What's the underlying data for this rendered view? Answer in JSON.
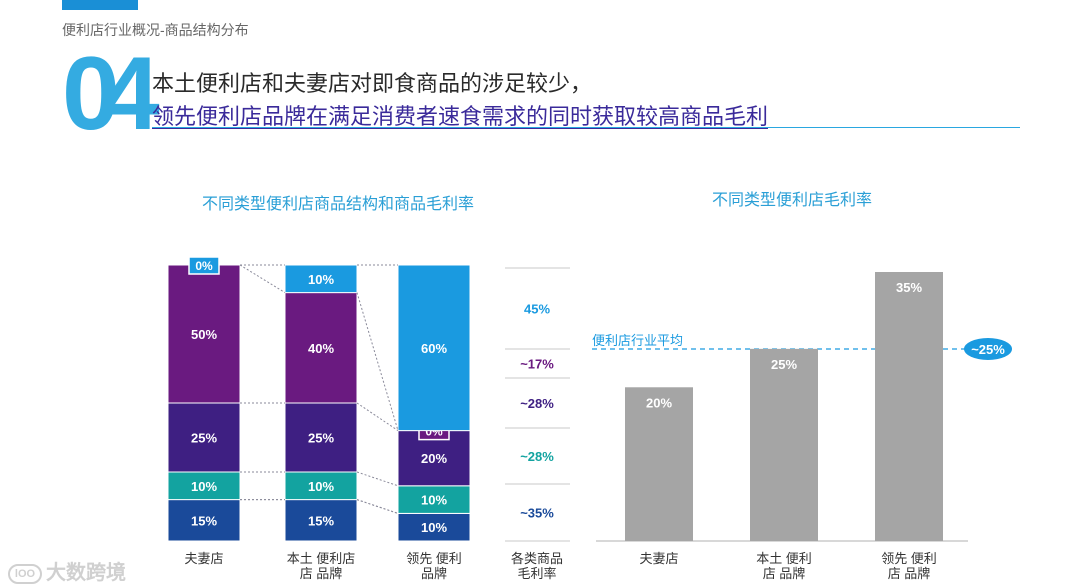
{
  "header": {
    "breadcrumb": "便利店行业概况-商品结构分布",
    "number": "04",
    "line1": "本土便利店和夫妻店对即食商品的涉足较少，",
    "line2": "领先便利店品牌在满足消费者速食需求的同时获取较高商品毛利"
  },
  "colors": {
    "cyan": "#1a9ae0",
    "purple": "#6a1a80",
    "indigo": "#3e1f82",
    "teal": "#13a3a0",
    "navy": "#1a4a9a",
    "gray": "#a5a5a5"
  },
  "chart_data": [
    {
      "type": "bar",
      "stacked": true,
      "title": "不同类型便利店商品结构和商品毛利率",
      "categories": [
        "夫妻店",
        "本土 便利店 品牌",
        "领先 便利 品牌"
      ],
      "category_lines": [
        [
          "夫妻店"
        ],
        [
          "本土  便利店",
          "店    品牌"
        ],
        [
          "领先  便利",
          "      品牌"
        ]
      ],
      "series": [
        {
          "color_key": "navy",
          "values": [
            15,
            15,
            10
          ],
          "labels": [
            "15%",
            "15%",
            "10%"
          ]
        },
        {
          "color_key": "teal",
          "values": [
            10,
            10,
            10
          ],
          "labels": [
            "10%",
            "10%",
            "10%"
          ]
        },
        {
          "color_key": "indigo",
          "values": [
            25,
            25,
            20
          ],
          "labels": [
            "25%",
            "25%",
            "20%"
          ]
        },
        {
          "color_key": "purple",
          "values": [
            50,
            40,
            0
          ],
          "labels": [
            "50%",
            "40%",
            "0%"
          ]
        },
        {
          "color_key": "cyan",
          "values": [
            0,
            10,
            60
          ],
          "labels": [
            "0%",
            "10%",
            "60%"
          ]
        }
      ],
      "ylim": [
        0,
        100
      ],
      "margin_column": {
        "label_lines": [
          "各类商品",
          "毛利率"
        ],
        "values": [
          "45%",
          "~17%",
          "~28%",
          "~28%",
          "~35%"
        ],
        "color_keys": [
          "cyan",
          "purple",
          "indigo",
          "teal",
          "navy"
        ]
      }
    },
    {
      "type": "bar",
      "title": "不同类型便利店毛利率",
      "categories": [
        "夫妻店",
        "本土 便利 店 品牌",
        "领先 便利 店 品牌"
      ],
      "category_lines": [
        [
          "夫妻店"
        ],
        [
          "本土  便利",
          "店    品牌"
        ],
        [
          "领先  便利",
          "店    品牌"
        ]
      ],
      "values": [
        20,
        25,
        35
      ],
      "labels": [
        "20%",
        "25%",
        "35%"
      ],
      "ylim": [
        0,
        37
      ],
      "reference_line": {
        "value": 25,
        "label": "便利店行业平均",
        "badge": "~25%"
      }
    }
  ]
}
